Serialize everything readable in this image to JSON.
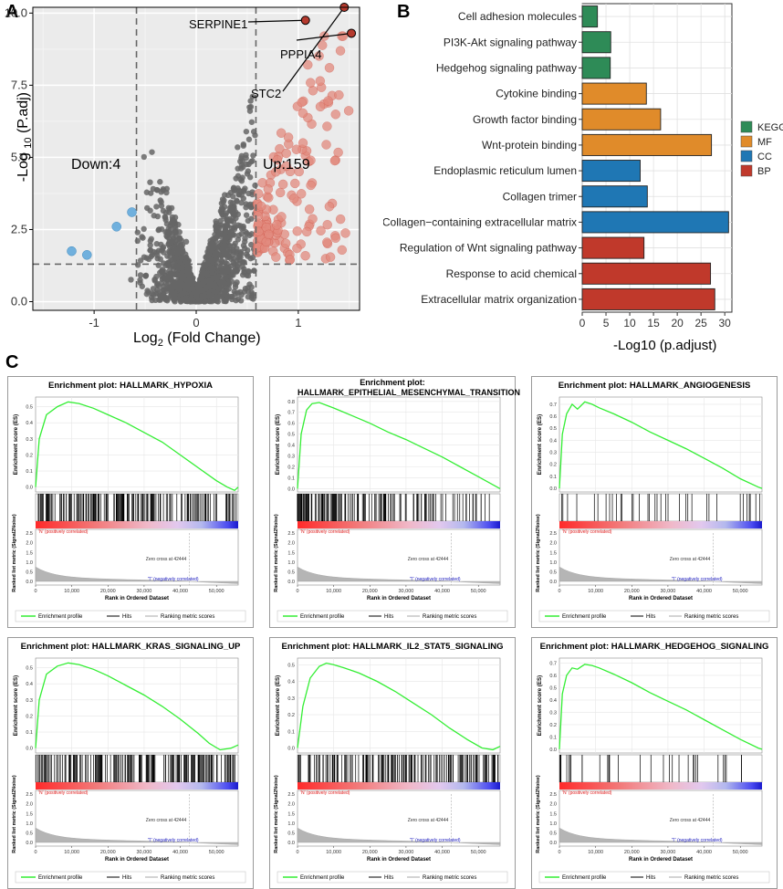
{
  "panels": {
    "a": "A",
    "b": "B",
    "c": "C"
  },
  "colors": {
    "up": "#cc4d3f",
    "up_fill": "#e2897d",
    "down": "#5aa6db",
    "ns": "#666666",
    "kegg": "#2e8b57",
    "mf": "#e08b2a",
    "cc": "#1f77b4",
    "bp": "#c0392b",
    "es_line": "#33ee33",
    "hits": "#000000"
  },
  "volcano": {
    "xlabel_main": "Log",
    "xlabel_sub": "2",
    "xlabel_rest": " (Fold Change)",
    "ylabel_main": "-Log ",
    "ylabel_sub": "10",
    "ylabel_rest": " (P.adj)",
    "down_label": "Down:4",
    "up_label": "Up:159",
    "genes": [
      "SERPINE1",
      "PPPIA4",
      "STC2"
    ]
  },
  "chart_data": [
    {
      "type": "scatter",
      "title": "",
      "xlabel": "Log2 (Fold Change)",
      "ylabel": "-Log10 (P.adj)",
      "xlim": [
        -1.6,
        1.6
      ],
      "ylim": [
        -0.3,
        10.2
      ],
      "x_ticks": [
        -1,
        0,
        1
      ],
      "y_ticks": [
        0.0,
        2.5,
        5.0,
        7.5,
        10.0
      ],
      "thresholds": {
        "x": [
          -0.585,
          0.585
        ],
        "y": 1.3
      },
      "down_points": [
        [
          -1.22,
          1.75
        ],
        [
          -1.07,
          1.62
        ],
        [
          -0.78,
          2.6
        ],
        [
          -0.63,
          3.1
        ]
      ],
      "labeled_points": [
        {
          "gene": "SERPINE1",
          "x": 1.07,
          "y": 9.75
        },
        {
          "gene": "PPPIA4",
          "x": 1.52,
          "y": 9.3
        },
        {
          "gene": "STC2",
          "x": 1.45,
          "y": 10.2
        }
      ],
      "counts": {
        "down": 4,
        "up": 159
      }
    },
    {
      "type": "bar",
      "orientation": "horizontal",
      "xlabel": "-Log10 (p.adjust)",
      "xlim": [
        0,
        31.5
      ],
      "x_ticks": [
        0,
        5,
        10,
        15,
        20,
        25,
        30
      ],
      "categories": [
        "Cell adhesion molecules",
        "PI3K-Akt signaling pathway",
        "Hedgehog signaling pathway",
        "Cytokine binding",
        "Growth factor binding",
        "Wnt-protein binding",
        "Endoplasmic reticulum lumen",
        "Collagen trimer",
        "Collagen−containing extracellular matrix",
        "Regulation of Wnt signaling pathway",
        "Response to acid chemical",
        "Extracellular matrix organization"
      ],
      "values": [
        3.2,
        6.0,
        5.9,
        13.5,
        16.5,
        27.2,
        12.2,
        13.7,
        30.8,
        13.0,
        27.0,
        27.9
      ],
      "groups": [
        "KEGG",
        "KEGG",
        "KEGG",
        "MF",
        "MF",
        "MF",
        "CC",
        "CC",
        "CC",
        "BP",
        "BP",
        "BP"
      ],
      "legend": [
        "KEGG",
        "MF",
        "CC",
        "BP"
      ]
    },
    {
      "type": "line",
      "title": "Enrichment plot: HALLMARK_HYPOXIA",
      "x": [
        0,
        1000,
        3000,
        6000,
        9000,
        12000,
        16000,
        20000,
        25000,
        30000,
        35000,
        40000,
        45000,
        50000,
        53000,
        55000,
        56000
      ],
      "y": [
        0,
        0.3,
        0.45,
        0.5,
        0.53,
        0.52,
        0.49,
        0.45,
        0.4,
        0.34,
        0.28,
        0.2,
        0.12,
        0.04,
        0.0,
        -0.02,
        0.0
      ],
      "y_ticks": [
        0.0,
        0.1,
        0.2,
        0.3,
        0.4,
        0.5
      ],
      "ylim": [
        -0.03,
        0.56
      ]
    },
    {
      "type": "line",
      "title": "Enrichment plot: HALLMARK_EPITHELIAL_MESENCHYMAL_TRANSITION",
      "x": [
        0,
        1000,
        2500,
        4000,
        6000,
        10000,
        15000,
        20000,
        25000,
        30000,
        35000,
        40000,
        45000,
        50000,
        56000
      ],
      "y": [
        0,
        0.5,
        0.72,
        0.78,
        0.79,
        0.74,
        0.67,
        0.6,
        0.52,
        0.45,
        0.37,
        0.29,
        0.2,
        0.11,
        0.0
      ],
      "y_ticks": [
        0.0,
        0.1,
        0.2,
        0.3,
        0.4,
        0.5,
        0.6,
        0.7,
        0.8
      ],
      "ylim": [
        -0.03,
        0.84
      ]
    },
    {
      "type": "line",
      "title": "Enrichment plot: HALLMARK_ANGIOGENESIS",
      "x": [
        0,
        800,
        2000,
        3500,
        5000,
        7000,
        9000,
        11000,
        15000,
        20000,
        25000,
        30000,
        35000,
        40000,
        45000,
        50000,
        55000,
        56000
      ],
      "y": [
        0,
        0.45,
        0.62,
        0.7,
        0.66,
        0.72,
        0.7,
        0.67,
        0.62,
        0.55,
        0.47,
        0.4,
        0.33,
        0.25,
        0.17,
        0.08,
        0.01,
        0.0
      ],
      "y_ticks": [
        0.0,
        0.1,
        0.2,
        0.3,
        0.4,
        0.5,
        0.6,
        0.7
      ],
      "ylim": [
        -0.03,
        0.76
      ]
    },
    {
      "type": "line",
      "title": "Enrichment plot: HALLMARK_KRAS_SIGNALING_UP",
      "x": [
        0,
        1000,
        3000,
        6000,
        9000,
        12000,
        16000,
        20000,
        25000,
        30000,
        35000,
        40000,
        45000,
        48000,
        51000,
        54000,
        56000
      ],
      "y": [
        0,
        0.3,
        0.46,
        0.51,
        0.53,
        0.52,
        0.49,
        0.45,
        0.39,
        0.33,
        0.26,
        0.18,
        0.09,
        0.03,
        -0.01,
        0.0,
        0.02
      ],
      "y_ticks": [
        0.0,
        0.1,
        0.2,
        0.3,
        0.4,
        0.5
      ],
      "ylim": [
        -0.03,
        0.56
      ]
    },
    {
      "type": "line",
      "title": "Enrichment plot: HALLMARK_IL2_STAT5_SIGNALING",
      "x": [
        0,
        1500,
        3500,
        6000,
        8000,
        10000,
        13000,
        17000,
        22000,
        27000,
        32000,
        37000,
        42000,
        47000,
        51000,
        54000,
        56000
      ],
      "y": [
        0,
        0.25,
        0.42,
        0.49,
        0.51,
        0.5,
        0.48,
        0.45,
        0.4,
        0.34,
        0.27,
        0.2,
        0.12,
        0.05,
        0.0,
        -0.01,
        0.01
      ],
      "y_ticks": [
        0.0,
        0.1,
        0.2,
        0.3,
        0.4,
        0.5
      ],
      "ylim": [
        -0.03,
        0.54
      ]
    },
    {
      "type": "line",
      "title": "Enrichment plot: HALLMARK_HEDGEHOG_SIGNALING",
      "x": [
        0,
        800,
        2000,
        3500,
        5000,
        7000,
        9000,
        11000,
        15000,
        20000,
        25000,
        30000,
        35000,
        40000,
        45000,
        50000,
        55000,
        56000
      ],
      "y": [
        0,
        0.45,
        0.6,
        0.66,
        0.65,
        0.69,
        0.68,
        0.66,
        0.61,
        0.54,
        0.46,
        0.39,
        0.32,
        0.24,
        0.16,
        0.08,
        0.01,
        0.0
      ],
      "y_ticks": [
        0.0,
        0.1,
        0.2,
        0.3,
        0.4,
        0.5,
        0.6,
        0.7
      ],
      "ylim": [
        -0.03,
        0.74
      ]
    }
  ],
  "gsea_common": {
    "es_axis_label": "Enrichment score (ES)",
    "rank_axis_label": "Ranked list metric (Signal2Noise)",
    "x_axis_label": "Rank in Ordered Dataset",
    "x_ticks": [
      "0",
      "10,000",
      "20,000",
      "30,000",
      "40,000",
      "50,000"
    ],
    "rank_y_ticks": [
      "2.5",
      "2.0",
      "1.5",
      "1.0",
      "0.5",
      "0.0"
    ],
    "pos_label": "'N' (positively correlated)",
    "neg_label": "'T' (negatively correlated)",
    "zero_cross": "Zero cross at 42444",
    "legend_profile": "Enrichment profile",
    "legend_hits": "Hits",
    "legend_ranking": "Ranking metric scores"
  }
}
